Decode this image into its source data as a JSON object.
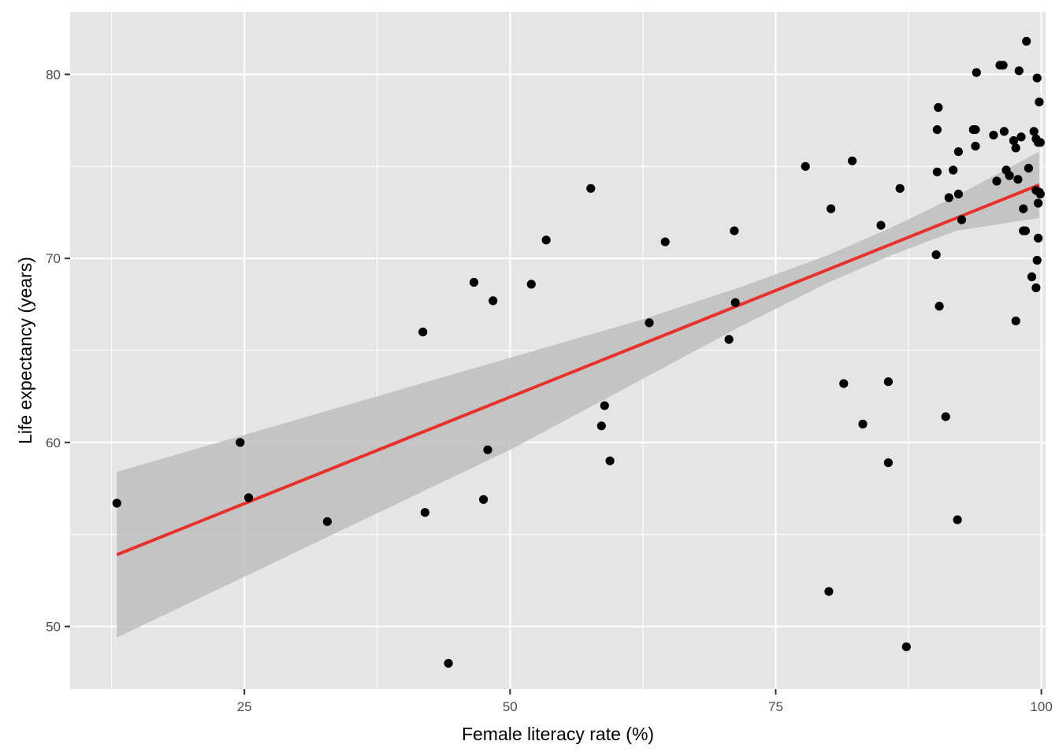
{
  "chart_data": {
    "type": "scatter",
    "title": "",
    "xlabel": "Female literacy rate (%)",
    "ylabel": "Life expectancy (years)",
    "xlim": [
      8.6,
      100.4
    ],
    "ylim": [
      46.6,
      83.4
    ],
    "x_ticks": [
      25,
      50,
      75,
      100
    ],
    "y_ticks": [
      50,
      60,
      70,
      80
    ],
    "x_tick_labels": [
      "25",
      "50",
      "75",
      "100"
    ],
    "y_tick_labels": [
      "50",
      "60",
      "70",
      "80"
    ],
    "grid": true,
    "legend": "none",
    "colors": {
      "panel_background": "#E5E5E5",
      "grid": "#FFFFFF",
      "points": "#000000",
      "trend_line": "#E8312A",
      "confidence_band": "#BEBEBE"
    },
    "points": [
      [
        13.0,
        56.7
      ],
      [
        24.6,
        60.0
      ],
      [
        25.4,
        57.0
      ],
      [
        32.8,
        55.7
      ],
      [
        41.8,
        66.0
      ],
      [
        42.0,
        56.2
      ],
      [
        44.2,
        48.0
      ],
      [
        46.6,
        68.7
      ],
      [
        47.5,
        56.9
      ],
      [
        47.9,
        59.6
      ],
      [
        48.4,
        67.7
      ],
      [
        52.0,
        68.6
      ],
      [
        53.4,
        71.0
      ],
      [
        57.6,
        73.8
      ],
      [
        58.6,
        60.9
      ],
      [
        58.9,
        62.0
      ],
      [
        59.4,
        59.0
      ],
      [
        63.1,
        66.5
      ],
      [
        64.6,
        70.9
      ],
      [
        70.6,
        65.6
      ],
      [
        71.1,
        71.5
      ],
      [
        71.2,
        67.6
      ],
      [
        77.8,
        75.0
      ],
      [
        80.2,
        72.7
      ],
      [
        80.0,
        51.9
      ],
      [
        81.4,
        63.2
      ],
      [
        82.2,
        75.3
      ],
      [
        83.2,
        61.0
      ],
      [
        84.9,
        71.8
      ],
      [
        85.6,
        63.3
      ],
      [
        85.6,
        58.9
      ],
      [
        86.7,
        73.8
      ],
      [
        87.3,
        48.9
      ],
      [
        90.1,
        70.2
      ],
      [
        90.2,
        74.7
      ],
      [
        90.2,
        77.0
      ],
      [
        90.3,
        78.2
      ],
      [
        90.4,
        67.4
      ],
      [
        91.0,
        61.4
      ],
      [
        91.3,
        73.3
      ],
      [
        91.7,
        74.8
      ],
      [
        92.2,
        75.8
      ],
      [
        92.2,
        73.5
      ],
      [
        92.1,
        55.8
      ],
      [
        92.5,
        72.1
      ],
      [
        93.6,
        77.0
      ],
      [
        93.8,
        77.0
      ],
      [
        93.8,
        76.1
      ],
      [
        93.9,
        80.1
      ],
      [
        95.5,
        76.7
      ],
      [
        95.8,
        74.2
      ],
      [
        96.1,
        80.5
      ],
      [
        96.4,
        80.5
      ],
      [
        96.5,
        76.9
      ],
      [
        96.7,
        74.8
      ],
      [
        97.0,
        74.5
      ],
      [
        97.4,
        76.4
      ],
      [
        97.6,
        76.0
      ],
      [
        97.6,
        66.6
      ],
      [
        97.8,
        74.3
      ],
      [
        97.9,
        80.2
      ],
      [
        98.1,
        76.6
      ],
      [
        98.3,
        72.7
      ],
      [
        98.3,
        71.5
      ],
      [
        98.5,
        71.5
      ],
      [
        98.6,
        81.8
      ],
      [
        98.8,
        74.9
      ],
      [
        99.1,
        69.0
      ],
      [
        99.3,
        76.9
      ],
      [
        99.5,
        68.4
      ],
      [
        99.5,
        76.5
      ],
      [
        99.5,
        73.7
      ],
      [
        99.6,
        69.9
      ],
      [
        99.6,
        79.8
      ],
      [
        99.7,
        73.0
      ],
      [
        99.7,
        71.1
      ],
      [
        99.7,
        76.3
      ],
      [
        99.8,
        78.5
      ],
      [
        99.8,
        73.6
      ],
      [
        99.9,
        73.5
      ],
      [
        99.9,
        76.3
      ]
    ],
    "trend_line": {
      "method": "linear regression",
      "x": [
        13.0,
        99.8
      ],
      "y": [
        53.9,
        74.0
      ]
    },
    "confidence_band": {
      "x": [
        13.0,
        50.0,
        62.0,
        72.0,
        80.0,
        86.0,
        92.0,
        99.8
      ],
      "lower": [
        49.4,
        59.6,
        63.3,
        66.4,
        68.7,
        70.2,
        71.5,
        72.2
      ],
      "upper": [
        58.4,
        64.6,
        66.6,
        68.5,
        70.2,
        71.7,
        73.4,
        75.8
      ]
    }
  }
}
